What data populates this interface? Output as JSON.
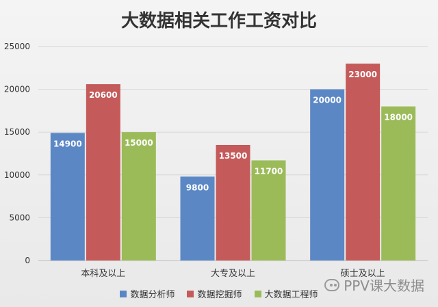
{
  "chart_data": {
    "type": "bar",
    "title": "大数据相关工作工资对比",
    "categories": [
      "本科及以上",
      "大专及以上",
      "硕士及以上"
    ],
    "series": [
      {
        "name": "数据分析师",
        "values": [
          14900,
          9800,
          20000
        ],
        "color": "#5b87c5"
      },
      {
        "name": "数据挖掘师",
        "values": [
          20600,
          13500,
          23000
        ],
        "color": "#c55a5a"
      },
      {
        "name": "大数据工程师",
        "values": [
          15000,
          11700,
          18000
        ],
        "color": "#9bbb59"
      }
    ],
    "ylim": [
      0,
      25000
    ],
    "yticks": [
      0,
      5000,
      10000,
      15000,
      20000,
      25000
    ],
    "grid": true,
    "legend": "bottom",
    "data_labels": true
  },
  "watermark": {
    "text": "PPV课大数据",
    "icon": "wechat-icon"
  }
}
